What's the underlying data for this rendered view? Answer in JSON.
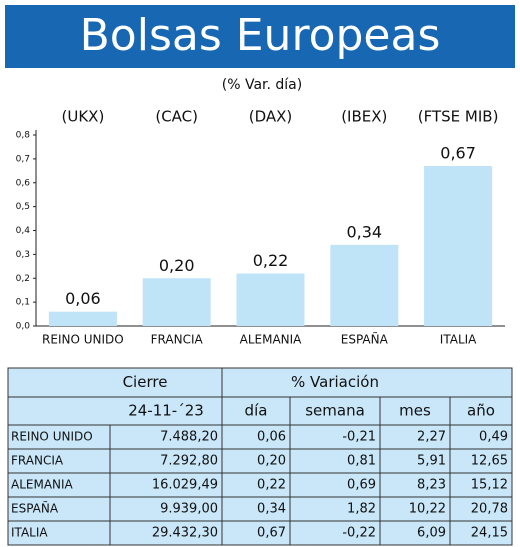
{
  "chart_data": {
    "type": "bar",
    "title": "Bolsas Europeas",
    "subtitle": "(% Var. día)",
    "tickers": [
      "(UKX)",
      "(CAC)",
      "(DAX)",
      "(IBEX)",
      "(FTSE MIB)"
    ],
    "categories": [
      "REINO UNIDO",
      "FRANCIA",
      "ALEMANIA",
      "ESPAÑA",
      "ITALIA"
    ],
    "values": [
      0.06,
      0.2,
      0.22,
      0.34,
      0.67
    ],
    "value_labels": [
      "0,06",
      "0,20",
      "0,22",
      "0,34",
      "0,67"
    ],
    "color": "#bfe4f8",
    "ylim": [
      0,
      0.8
    ],
    "yticks": [
      {
        "value": 0,
        "label": "0,0"
      },
      {
        "value": 0.1,
        "label": "0,1"
      },
      {
        "value": 0.2,
        "label": "0,2"
      },
      {
        "value": 0.3,
        "label": "0,3"
      },
      {
        "value": 0.4,
        "label": "0,4"
      },
      {
        "value": 0.5,
        "label": "0,5"
      },
      {
        "value": 0.6,
        "label": "0,6"
      },
      {
        "value": 0.7,
        "label": "0,7"
      },
      {
        "value": 0.8,
        "label": "0,8"
      }
    ],
    "grid": false
  },
  "table": {
    "header": [
      "Cierre",
      "% Variación"
    ],
    "subheader": [
      "24-11-´23",
      "día",
      "semana",
      "mes",
      "año"
    ],
    "rows": [
      [
        "REINO UNIDO",
        "7.488,20",
        "0,06",
        "-0,21",
        "2,27",
        "0,49"
      ],
      [
        "FRANCIA",
        "7.292,80",
        "0,20",
        "0,81",
        "5,91",
        "12,65"
      ],
      [
        "ALEMANIA",
        "16.029,49",
        "0,22",
        "0,69",
        "8,23",
        "15,12"
      ],
      [
        "ESPAÑA",
        "9.939,00",
        "0,34",
        "1,82",
        "10,22",
        "20,78"
      ],
      [
        "ITALIA",
        "29.432,30",
        "0,67",
        "-0,22",
        "6,09",
        "24,15"
      ]
    ]
  }
}
